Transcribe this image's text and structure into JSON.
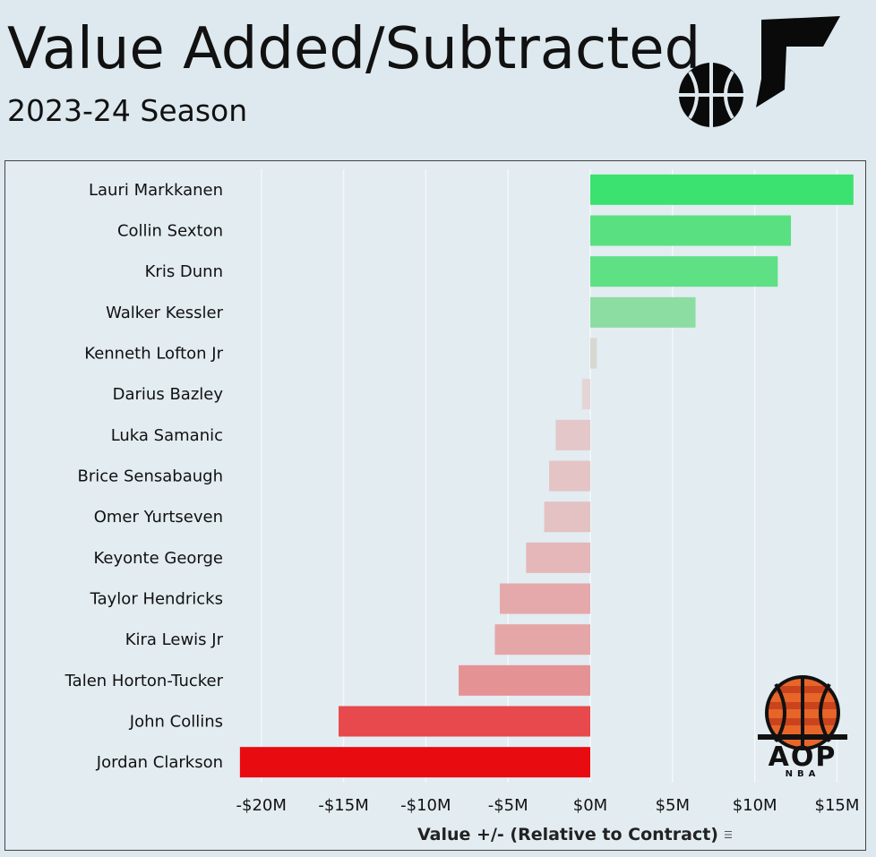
{
  "header": {
    "title": "Value Added/Subtracted",
    "subtitle": "2023-24 Season"
  },
  "logos": {
    "team": "jazz-note-icon",
    "brand_text": "AOP",
    "brand_sub": "NBA"
  },
  "colors": {
    "background": "#dde9ef",
    "positive_max": "#3ce26f",
    "negative_max": "#e80b0f",
    "neutral": "#e4d7d8"
  },
  "chart_data": {
    "type": "bar",
    "orientation": "horizontal",
    "xlabel": "Value +/- (Relative to Contract)",
    "ylabel": "",
    "xlim": [
      -22,
      16.5
    ],
    "grid": true,
    "tick_values": [
      -20,
      -15,
      -10,
      -5,
      0,
      5,
      10,
      15
    ],
    "tick_labels": [
      "-$20M",
      "-$15M",
      "-$10M",
      "-$5M",
      "$0M",
      "$5M",
      "$10M",
      "$15M"
    ],
    "categories": [
      "Lauri Markkanen",
      "Collin Sexton",
      "Kris Dunn",
      "Walker Kessler",
      "Kenneth Lofton Jr",
      "Darius Bazley",
      "Luka Samanic",
      "Brice Sensabaugh",
      "Omer Yurtseven",
      "Keyonte George",
      "Taylor Hendricks",
      "Kira Lewis Jr",
      "Talen Horton-Tucker",
      "John Collins",
      "Jordan Clarkson"
    ],
    "values": [
      16.0,
      12.2,
      11.4,
      6.4,
      0.4,
      -0.5,
      -2.1,
      -2.5,
      -2.8,
      -3.9,
      -5.5,
      -5.8,
      -8.0,
      -15.3,
      -21.3
    ],
    "units": "$M"
  }
}
